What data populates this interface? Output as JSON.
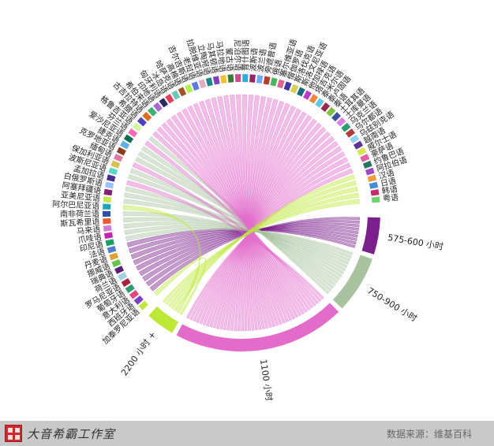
{
  "chart_data": {
    "type": "chord",
    "groups": [
      {
        "label": "575-600 小时",
        "color": "#7b1f8c"
      },
      {
        "label": "750-900 小时",
        "color": "#a9c3a0"
      },
      {
        "label": "1100 小时",
        "color": "#e36ccb"
      },
      {
        "label": "2200 小时 +",
        "color": "#bde837"
      }
    ],
    "languages": [
      "加泰罗尼亚语",
      "西班牙语",
      "意大利语",
      "葡萄牙语",
      "罗马尼亚语",
      "荷兰语",
      "瑞典语",
      "挪威语",
      "丹麦语",
      "法语",
      "印尼语",
      "爪哇语",
      "马来语",
      "斯瓦希里语",
      "南非荷兰语",
      "阿尔巴尼亚语",
      "亚美尼亚语",
      "阿塞拜疆语",
      "白俄罗斯语",
      "孟加拉语",
      "波斯尼亚语",
      "保加利亚语",
      "缅甸语",
      "克罗地亚语",
      "捷克语",
      "爱沙尼亚语",
      "芬兰语",
      "格鲁吉亚语",
      "希腊语",
      "古吉拉特语",
      "希伯来语",
      "印地语",
      "匈牙利语",
      "冰岛语",
      "哈萨克语",
      "高棉语",
      "吉尔吉斯语",
      "老挝语",
      "拉脱维亚语",
      "立陶宛语",
      "马其顿语",
      "马拉地语",
      "蒙古语",
      "尼泊尔语",
      "普什图语",
      "波斯语",
      "波兰语",
      "旁遮普语",
      "俄语",
      "塞尔维亚语",
      "僧伽罗语",
      "斯洛伐克语",
      "斯洛文尼亚语",
      "他加禄语",
      "塔吉克语",
      "泰米尔语",
      "泰卢固语",
      "泰语",
      "土耳其语",
      "土库曼语",
      "乌克兰语",
      "乌尔都语",
      "乌兹别克语",
      "越南语",
      "威尔士语",
      "豪萨语",
      "约鲁巴语",
      "阿拉伯语",
      "汉语",
      "日语",
      "韩语",
      "粤语"
    ],
    "language_group_index": [
      3,
      0,
      0,
      0,
      0,
      0,
      0,
      0,
      0,
      0,
      1,
      1,
      1,
      1,
      1,
      3,
      1,
      1,
      1,
      2,
      1,
      1,
      2,
      1,
      1,
      1,
      2,
      1,
      2,
      2,
      2,
      2,
      2,
      2,
      2,
      2,
      2,
      2,
      2,
      2,
      2,
      2,
      2,
      2,
      2,
      2,
      2,
      2,
      2,
      2,
      2,
      2,
      2,
      2,
      2,
      2,
      2,
      2,
      2,
      2,
      2,
      2,
      2,
      2,
      2,
      2,
      2,
      3,
      3,
      3,
      3,
      3
    ],
    "language_colors": [
      "#bde837",
      "#7a3fc4",
      "#e4447f",
      "#2c9c6a",
      "#ad1f3f",
      "#9fd0e8",
      "#5b1f7a",
      "#63c447",
      "#e2a02c",
      "#4f7fd2",
      "#15a05d",
      "#c81fb5",
      "#d27bd0",
      "#f05a36",
      "#2f4db0",
      "#1aa7b8",
      "#c4e84c",
      "#82217a",
      "#99c4ff",
      "#4b2c8b",
      "#58d6c8",
      "#d9c04b",
      "#e07aa4",
      "#8a3c1c",
      "#60b1ea",
      "#0d6e54",
      "#ff69b4",
      "#d6f39e",
      "#4e42c1",
      "#e46b1d",
      "#3cb371",
      "#ab65d2",
      "#2b2b64",
      "#ea3a59",
      "#6ac9b5",
      "#a5522a",
      "#b2f04d",
      "#5d7bde",
      "#e7a9c6",
      "#1b8a8a",
      "#813fbe",
      "#f1c232",
      "#357e3a",
      "#cf4a8f",
      "#2ab0d8",
      "#9e1f62",
      "#6ba9ff",
      "#c3382e",
      "#45b85f",
      "#e2648e",
      "#3f37a6",
      "#d3d04a",
      "#146c7e",
      "#bb3bd1",
      "#f0853a",
      "#60c8ea",
      "#9a2b4e",
      "#7cc23f",
      "#3a4fa0",
      "#e07fe2",
      "#2a9e73",
      "#b23a38",
      "#8fd3f6",
      "#5c2f99",
      "#d6e94b",
      "#e65ea1",
      "#25785f",
      "#a049c7",
      "#f29a39",
      "#3f8fd8",
      "#c82a6b",
      "#6bd46b"
    ],
    "title": "",
    "source_text": "数据来源：维基百科",
    "studio_text": "大音希霸工作室"
  },
  "footer": {
    "source": "数据来源：维基百科",
    "studio": "大音希霸工作室"
  }
}
